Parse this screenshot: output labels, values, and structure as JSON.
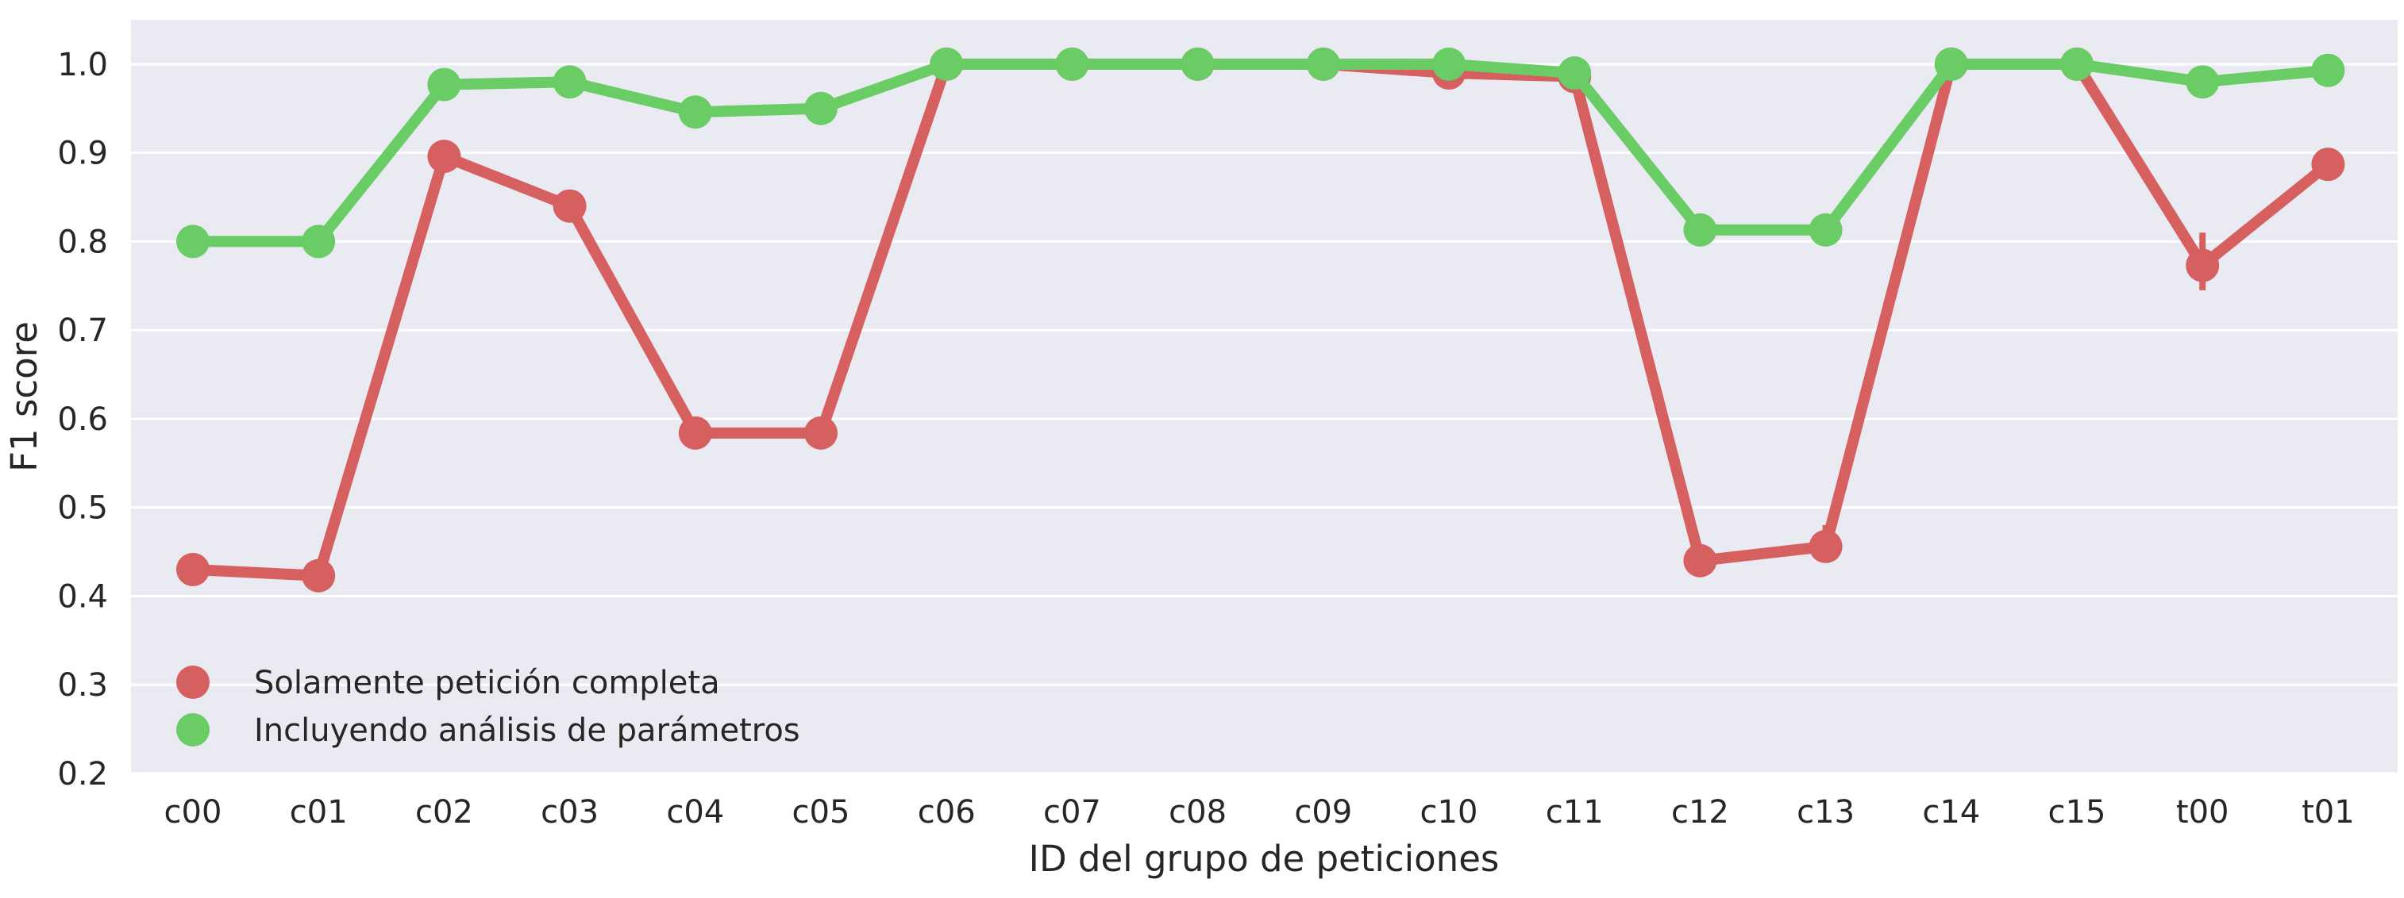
{
  "chart_data": {
    "type": "line",
    "xlabel": "ID del grupo de peticiones",
    "ylabel": "F1 score",
    "ylim": [
      0.2,
      1.05
    ],
    "yticks": [
      "0.2",
      "0.3",
      "0.4",
      "0.5",
      "0.6",
      "0.7",
      "0.8",
      "0.9",
      "1.0"
    ],
    "grid": true,
    "legend_position": "lower-left",
    "categories": [
      "c00",
      "c01",
      "c02",
      "c03",
      "c04",
      "c05",
      "c06",
      "c07",
      "c08",
      "c09",
      "c10",
      "c11",
      "c12",
      "c13",
      "c14",
      "c15",
      "t00",
      "t01"
    ],
    "series": [
      {
        "name": "Solamente petición completa",
        "color": "#d65f5f",
        "values": [
          0.43,
          0.423,
          0.896,
          0.84,
          0.584,
          0.584,
          1.0,
          1.0,
          1.0,
          1.0,
          0.99,
          0.986,
          0.44,
          0.456,
          1.0,
          1.0,
          0.773,
          0.887
        ],
        "error_bars": [
          null,
          null,
          null,
          null,
          null,
          null,
          null,
          null,
          null,
          null,
          null,
          null,
          null,
          [
            0.44,
            0.48
          ],
          null,
          null,
          [
            0.745,
            0.81
          ],
          null
        ]
      },
      {
        "name": "Incluyendo análisis de parámetros",
        "color": "#6acc65",
        "values": [
          0.8,
          0.8,
          0.977,
          0.98,
          0.946,
          0.95,
          1.0,
          1.0,
          1.0,
          1.0,
          1.0,
          0.99,
          0.813,
          0.813,
          1.0,
          1.0,
          0.98,
          0.993
        ]
      }
    ]
  }
}
